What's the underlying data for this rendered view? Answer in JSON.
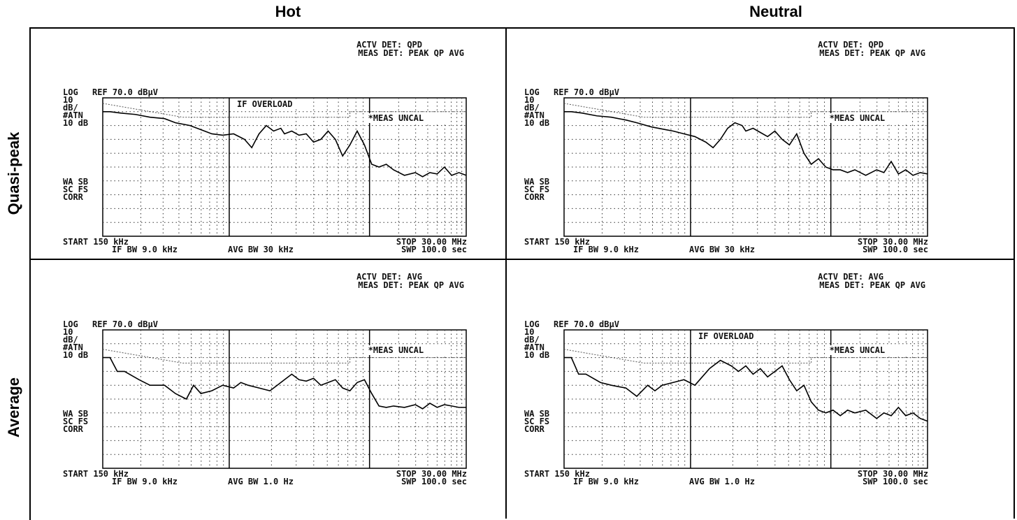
{
  "headers": {
    "columns": [
      "Hot",
      "Neutral"
    ],
    "rows": [
      "Quasi-peak",
      "Average"
    ]
  },
  "common": {
    "log_label": "LOG",
    "ref_label": "REF 70.0 dBµV",
    "scale_label": "10",
    "dbdiv_label": "dB/",
    "atn_label": "#ATN",
    "atn_value": "10 dB",
    "wa_sb": "WA SB",
    "sc_fs": "SC FS",
    "corr": "CORR",
    "start": "START 150 kHz",
    "stop": "STOP 30.00 MHz",
    "if_bw": "IF BW 9.0 kHz",
    "swp": "SWP 100.0  sec",
    "meas_det": "MEAS DET: PEAK QP AVG"
  },
  "chart_data": [
    {
      "type": "line",
      "title": "Hot / Quasi-peak",
      "actv_det": "ACTV DET: QPD",
      "avg_bw": "AVG BW 30 kHz",
      "overload": "IF OVERLOAD",
      "uncal": "*MEAS UNCAL",
      "xlim": [
        "150 kHz",
        "30.00 MHz"
      ],
      "ylim": [
        -30,
        70
      ],
      "y_unit": "dBµV",
      "x_fraction": [
        0,
        0.02,
        0.05,
        0.09,
        0.13,
        0.17,
        0.2,
        0.24,
        0.28,
        0.3,
        0.33,
        0.36,
        0.39,
        0.41,
        0.43,
        0.45,
        0.47,
        0.49,
        0.5,
        0.52,
        0.54,
        0.56,
        0.58,
        0.6,
        0.62,
        0.64,
        0.66,
        0.68,
        0.7,
        0.72,
        0.74,
        0.76,
        0.78,
        0.8,
        0.83,
        0.86,
        0.88,
        0.9,
        0.92,
        0.94,
        0.96,
        0.98,
        1.0
      ],
      "values": [
        60,
        60,
        59,
        58,
        56,
        55,
        52,
        50,
        46,
        44,
        43,
        44,
        40,
        34,
        44,
        50,
        46,
        48,
        44,
        46,
        43,
        44,
        38,
        40,
        46,
        40,
        28,
        36,
        46,
        36,
        22,
        20,
        22,
        18,
        14,
        16,
        13,
        16,
        15,
        20,
        14,
        16,
        14
      ],
      "limit_line": {
        "x_fraction": [
          0,
          0.22,
          0.22,
          0.68,
          0.68,
          1.0
        ],
        "values": [
          66,
          56,
          56,
          56,
          60,
          60
        ]
      }
    },
    {
      "type": "line",
      "title": "Neutral / Quasi-peak",
      "actv_det": "ACTV DET: QPD",
      "avg_bw": "AVG BW 30 kHz",
      "overload": "",
      "uncal": "*MEAS UNCAL",
      "xlim": [
        "150 kHz",
        "30.00 MHz"
      ],
      "ylim": [
        -30,
        70
      ],
      "y_unit": "dBµV",
      "x_fraction": [
        0,
        0.02,
        0.05,
        0.09,
        0.13,
        0.17,
        0.2,
        0.24,
        0.28,
        0.3,
        0.33,
        0.36,
        0.39,
        0.41,
        0.43,
        0.45,
        0.47,
        0.49,
        0.5,
        0.52,
        0.54,
        0.56,
        0.58,
        0.6,
        0.62,
        0.64,
        0.66,
        0.68,
        0.7,
        0.72,
        0.74,
        0.76,
        0.78,
        0.8,
        0.83,
        0.86,
        0.88,
        0.9,
        0.92,
        0.94,
        0.96,
        0.98,
        1.0
      ],
      "values": [
        60,
        60,
        59,
        57,
        56,
        54,
        52,
        49,
        47,
        46,
        44,
        42,
        38,
        34,
        40,
        48,
        52,
        50,
        46,
        48,
        45,
        42,
        46,
        40,
        36,
        44,
        30,
        22,
        26,
        20,
        18,
        18,
        16,
        18,
        14,
        18,
        16,
        24,
        15,
        18,
        14,
        16,
        15
      ],
      "limit_line": {
        "x_fraction": [
          0,
          0.22,
          0.22,
          0.68,
          0.68,
          1.0
        ],
        "values": [
          66,
          56,
          56,
          56,
          60,
          60
        ]
      }
    },
    {
      "type": "line",
      "title": "Hot / Average",
      "actv_det": "ACTV DET: AVG",
      "avg_bw": "AVG BW 1.0 Hz",
      "overload": "",
      "uncal": "*MEAS UNCAL",
      "xlim": [
        "150 kHz",
        "30.00 MHz"
      ],
      "ylim": [
        -30,
        70
      ],
      "y_unit": "dBµV",
      "x_fraction": [
        0,
        0.02,
        0.04,
        0.06,
        0.1,
        0.13,
        0.17,
        0.2,
        0.23,
        0.25,
        0.27,
        0.3,
        0.33,
        0.36,
        0.38,
        0.4,
        0.43,
        0.46,
        0.48,
        0.5,
        0.52,
        0.54,
        0.56,
        0.58,
        0.6,
        0.62,
        0.64,
        0.66,
        0.68,
        0.7,
        0.72,
        0.74,
        0.76,
        0.78,
        0.8,
        0.83,
        0.86,
        0.88,
        0.9,
        0.92,
        0.94,
        0.96,
        0.98,
        1.0
      ],
      "values": [
        50,
        50,
        40,
        40,
        34,
        30,
        30,
        24,
        20,
        30,
        24,
        26,
        30,
        28,
        32,
        30,
        28,
        26,
        30,
        34,
        38,
        34,
        33,
        35,
        30,
        32,
        34,
        28,
        26,
        32,
        34,
        24,
        15,
        14,
        15,
        14,
        16,
        13,
        17,
        14,
        16,
        15,
        14,
        14
      ],
      "limit_line": {
        "x_fraction": [
          0,
          0.22,
          0.22,
          0.68,
          0.68,
          1.0
        ],
        "values": [
          56,
          46,
          46,
          46,
          50,
          50
        ]
      }
    },
    {
      "type": "line",
      "title": "Neutral / Average",
      "actv_det": "ACTV DET: AVG",
      "avg_bw": "AVG BW 1.0 Hz",
      "overload": "IF OVERLOAD",
      "uncal": "*MEAS UNCAL",
      "xlim": [
        "150 kHz",
        "30.00 MHz"
      ],
      "ylim": [
        -30,
        70
      ],
      "y_unit": "dBµV",
      "x_fraction": [
        0,
        0.02,
        0.04,
        0.06,
        0.1,
        0.13,
        0.17,
        0.2,
        0.23,
        0.25,
        0.27,
        0.3,
        0.33,
        0.36,
        0.38,
        0.4,
        0.43,
        0.46,
        0.48,
        0.5,
        0.52,
        0.54,
        0.56,
        0.58,
        0.6,
        0.62,
        0.64,
        0.66,
        0.68,
        0.7,
        0.72,
        0.74,
        0.76,
        0.78,
        0.8,
        0.83,
        0.86,
        0.88,
        0.9,
        0.92,
        0.94,
        0.96,
        0.98,
        1.0
      ],
      "values": [
        50,
        50,
        38,
        38,
        32,
        30,
        28,
        22,
        30,
        26,
        30,
        32,
        34,
        30,
        36,
        42,
        48,
        44,
        40,
        44,
        38,
        42,
        36,
        40,
        44,
        34,
        26,
        30,
        18,
        12,
        10,
        12,
        8,
        12,
        10,
        12,
        6,
        10,
        8,
        14,
        8,
        10,
        6,
        4
      ],
      "limit_line": {
        "x_fraction": [
          0,
          0.22,
          0.22,
          0.68,
          0.68,
          1.0
        ],
        "values": [
          56,
          46,
          46,
          46,
          50,
          50
        ]
      }
    }
  ]
}
